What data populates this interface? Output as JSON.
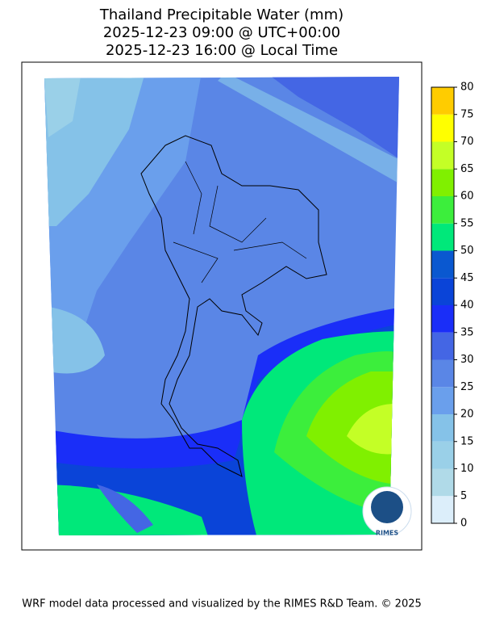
{
  "title": [
    "Thailand Precipitable Water (mm)",
    "2025-12-23 09:00 @ UTC+00:00",
    "2025-12-23 16:00 @ Local Time"
  ],
  "colorbar": {
    "ticks": [
      0,
      5,
      10,
      15,
      20,
      25,
      30,
      35,
      40,
      45,
      50,
      55,
      60,
      65,
      70,
      75,
      80
    ],
    "colors": [
      "#dceefa",
      "#b0dae8",
      "#9ad0e8",
      "#85c2e8",
      "#6a9fec",
      "#5a86e6",
      "#4466e4",
      "#1a2ef8",
      "#0a44d8",
      "#0a58d0",
      "#00e87a",
      "#3cee3c",
      "#80f000",
      "#c4ff26",
      "#ffff00",
      "#ffcc00"
    ]
  },
  "logo_text": "RIMES",
  "footer": "WRF model data processed and visualized by the RIMES R&D Team. © 2025"
}
